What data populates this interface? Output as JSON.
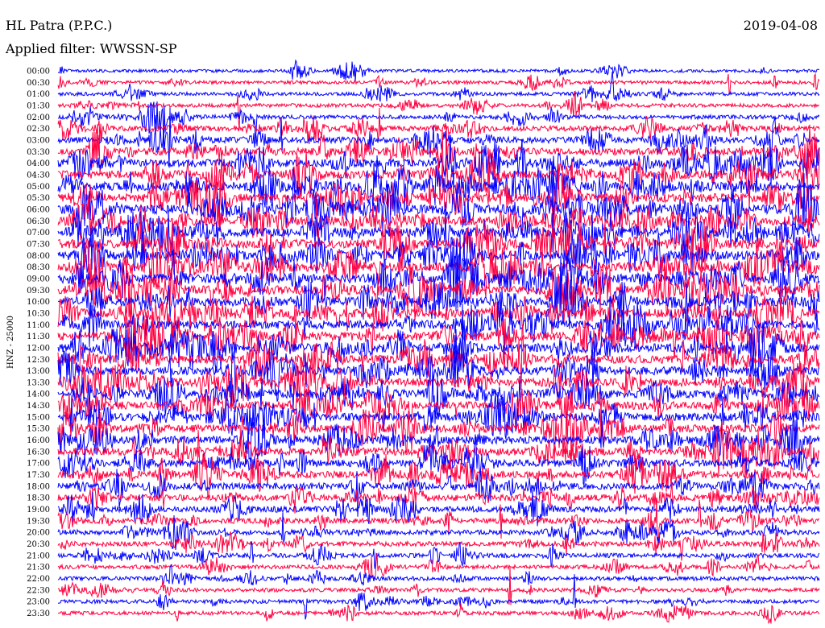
{
  "header": {
    "station": "HL Patra (P.P.C.)",
    "filter": "Applied filter: WWSSN-SP",
    "date": "2019-04-08"
  },
  "chart_data": {
    "type": "line",
    "ylabel": "HNZ - 25000",
    "series_colors": [
      "#0000ff",
      "#ff0040"
    ],
    "categories": [
      "00:00",
      "00:30",
      "01:00",
      "01:30",
      "02:00",
      "02:30",
      "03:00",
      "03:30",
      "04:00",
      "04:30",
      "05:00",
      "05:30",
      "06:00",
      "06:30",
      "07:00",
      "07:30",
      "08:00",
      "08:30",
      "09:00",
      "09:30",
      "10:00",
      "10:30",
      "11:00",
      "11:30",
      "12:00",
      "12:30",
      "13:00",
      "13:30",
      "14:00",
      "14:30",
      "15:00",
      "15:30",
      "16:00",
      "16:30",
      "17:00",
      "17:30",
      "18:00",
      "18:30",
      "19:00",
      "19:30",
      "20:00",
      "20:30",
      "21:00",
      "21:30",
      "22:00",
      "22:30",
      "23:00",
      "23:30"
    ],
    "activity": [
      0.15,
      0.2,
      0.2,
      0.25,
      0.3,
      0.45,
      0.6,
      0.75,
      0.85,
      0.9,
      0.95,
      0.95,
      1.0,
      1.0,
      1.0,
      1.0,
      1.0,
      1.0,
      1.0,
      1.0,
      1.0,
      0.95,
      0.95,
      0.95,
      0.95,
      0.9,
      0.9,
      0.9,
      0.9,
      0.85,
      0.85,
      0.85,
      0.85,
      0.8,
      0.75,
      0.7,
      0.65,
      0.6,
      0.55,
      0.5,
      0.45,
      0.4,
      0.35,
      0.3,
      0.28,
      0.25,
      0.25,
      0.25
    ]
  }
}
